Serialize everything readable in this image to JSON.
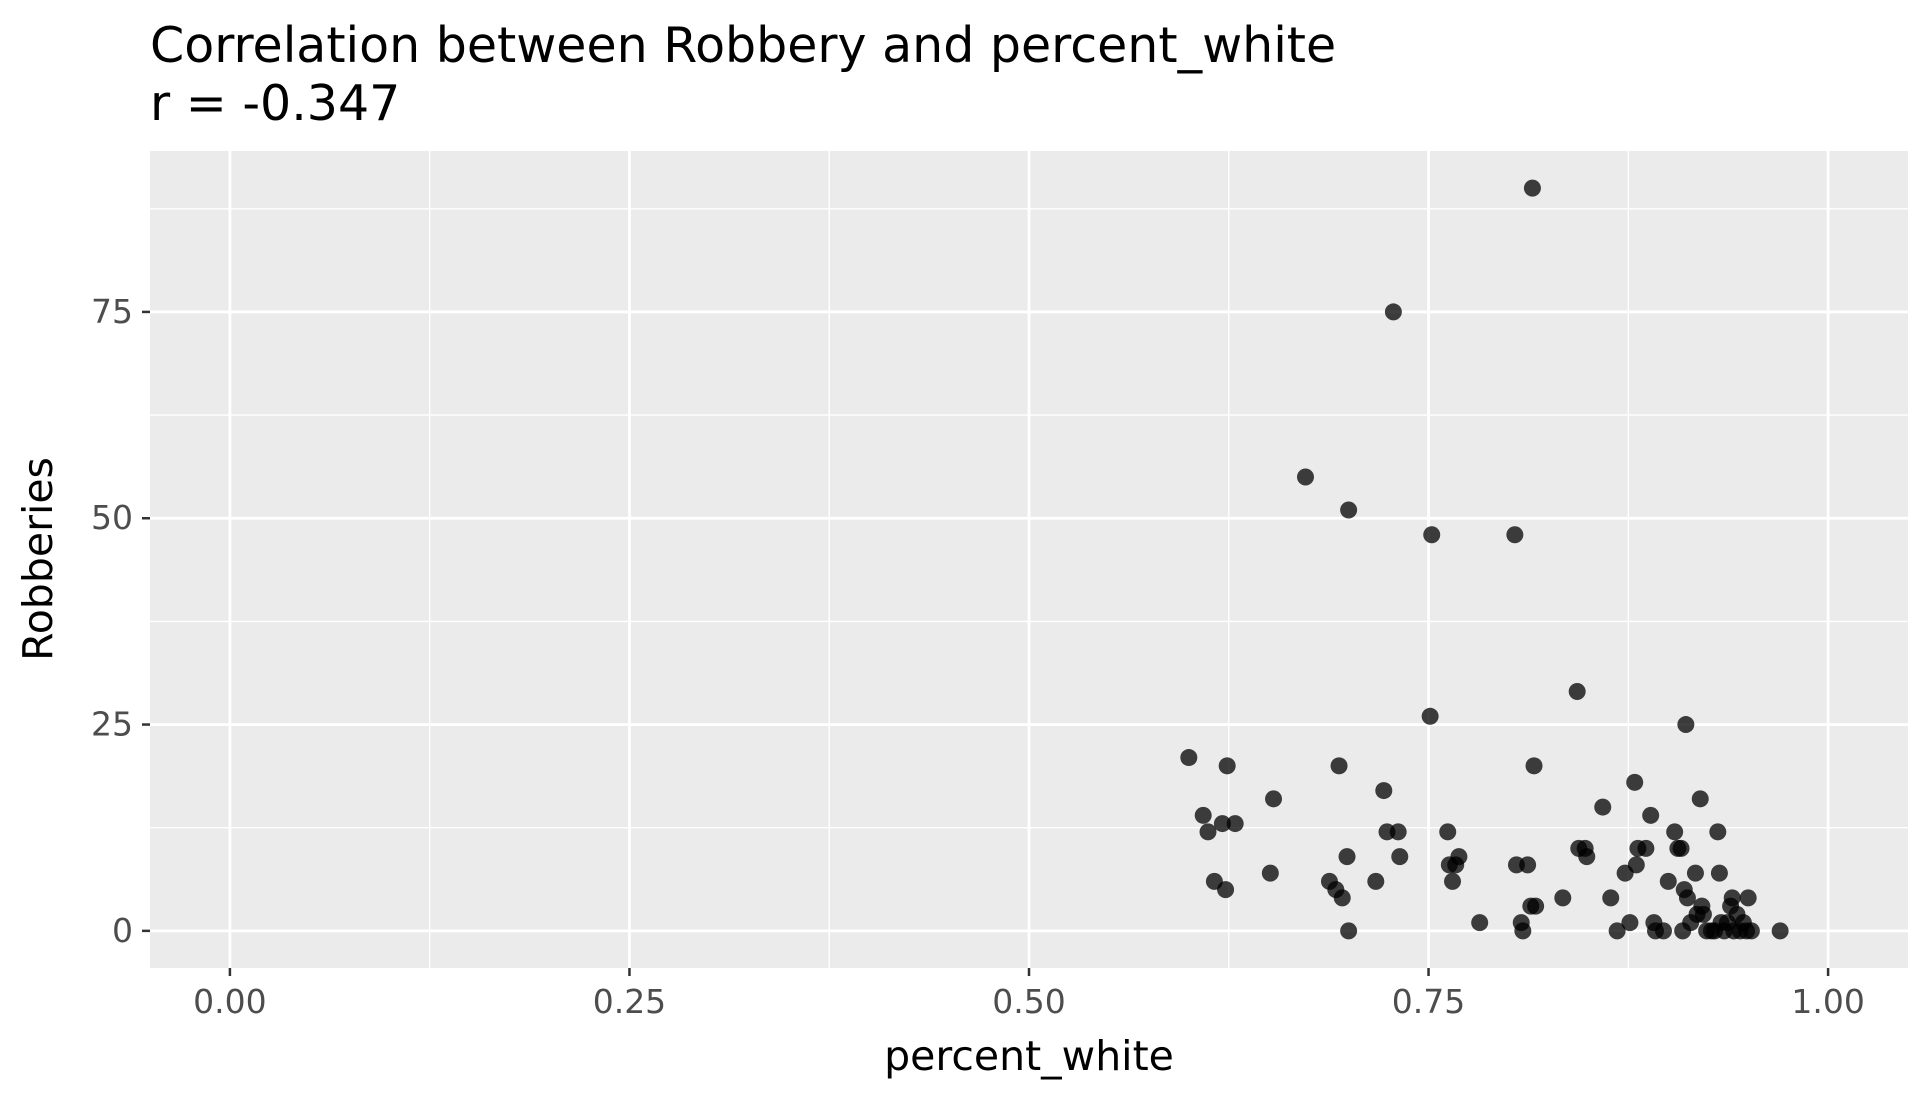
{
  "chart_data": {
    "type": "scatter",
    "title": "Correlation between Robbery and percent_white",
    "subtitle": "r = -0.347",
    "xlabel": "percent_white",
    "ylabel": "Robberies",
    "xlim": [
      -0.05,
      1.05
    ],
    "ylim": [
      -4.5,
      94.5
    ],
    "x_ticks": [
      0.0,
      0.25,
      0.5,
      0.75,
      1.0
    ],
    "x_tick_labels": [
      "0.00",
      "0.25",
      "0.50",
      "0.75",
      "1.00"
    ],
    "y_ticks": [
      0,
      25,
      50,
      75
    ],
    "y_tick_labels": [
      "0",
      "25",
      "50",
      "75"
    ],
    "grid": true,
    "legend": "none",
    "colors": {
      "panel": "#ebebeb",
      "grid": "#ffffff",
      "point": "#000000"
    },
    "points": [
      {
        "x": 0.6,
        "y": 21
      },
      {
        "x": 0.609,
        "y": 14
      },
      {
        "x": 0.612,
        "y": 12
      },
      {
        "x": 0.616,
        "y": 6
      },
      {
        "x": 0.621,
        "y": 13
      },
      {
        "x": 0.623,
        "y": 5
      },
      {
        "x": 0.624,
        "y": 20
      },
      {
        "x": 0.629,
        "y": 13
      },
      {
        "x": 0.651,
        "y": 7
      },
      {
        "x": 0.653,
        "y": 16
      },
      {
        "x": 0.673,
        "y": 55
      },
      {
        "x": 0.688,
        "y": 6
      },
      {
        "x": 0.692,
        "y": 5
      },
      {
        "x": 0.694,
        "y": 20
      },
      {
        "x": 0.696,
        "y": 4
      },
      {
        "x": 0.699,
        "y": 9
      },
      {
        "x": 0.7,
        "y": 0
      },
      {
        "x": 0.7,
        "y": 51
      },
      {
        "x": 0.717,
        "y": 6
      },
      {
        "x": 0.722,
        "y": 17
      },
      {
        "x": 0.724,
        "y": 12
      },
      {
        "x": 0.728,
        "y": 75
      },
      {
        "x": 0.731,
        "y": 12
      },
      {
        "x": 0.732,
        "y": 9
      },
      {
        "x": 0.751,
        "y": 26
      },
      {
        "x": 0.752,
        "y": 48
      },
      {
        "x": 0.762,
        "y": 12
      },
      {
        "x": 0.763,
        "y": 8
      },
      {
        "x": 0.765,
        "y": 6
      },
      {
        "x": 0.767,
        "y": 8
      },
      {
        "x": 0.769,
        "y": 9
      },
      {
        "x": 0.782,
        "y": 1
      },
      {
        "x": 0.804,
        "y": 48
      },
      {
        "x": 0.805,
        "y": 8
      },
      {
        "x": 0.808,
        "y": 1
      },
      {
        "x": 0.809,
        "y": 0
      },
      {
        "x": 0.812,
        "y": 8
      },
      {
        "x": 0.814,
        "y": 3
      },
      {
        "x": 0.815,
        "y": 90
      },
      {
        "x": 0.816,
        "y": 20
      },
      {
        "x": 0.817,
        "y": 3
      },
      {
        "x": 0.834,
        "y": 4
      },
      {
        "x": 0.843,
        "y": 29
      },
      {
        "x": 0.844,
        "y": 10
      },
      {
        "x": 0.848,
        "y": 10
      },
      {
        "x": 0.849,
        "y": 9
      },
      {
        "x": 0.859,
        "y": 15
      },
      {
        "x": 0.864,
        "y": 4
      },
      {
        "x": 0.868,
        "y": 0
      },
      {
        "x": 0.873,
        "y": 7
      },
      {
        "x": 0.876,
        "y": 1
      },
      {
        "x": 0.879,
        "y": 18
      },
      {
        "x": 0.88,
        "y": 8
      },
      {
        "x": 0.881,
        "y": 10
      },
      {
        "x": 0.886,
        "y": 10
      },
      {
        "x": 0.889,
        "y": 14
      },
      {
        "x": 0.891,
        "y": 1
      },
      {
        "x": 0.892,
        "y": 0
      },
      {
        "x": 0.897,
        "y": 0
      },
      {
        "x": 0.9,
        "y": 6
      },
      {
        "x": 0.904,
        "y": 12
      },
      {
        "x": 0.906,
        "y": 10
      },
      {
        "x": 0.908,
        "y": 10
      },
      {
        "x": 0.909,
        "y": 0
      },
      {
        "x": 0.91,
        "y": 5
      },
      {
        "x": 0.911,
        "y": 25
      },
      {
        "x": 0.912,
        "y": 4
      },
      {
        "x": 0.914,
        "y": 1
      },
      {
        "x": 0.917,
        "y": 7
      },
      {
        "x": 0.918,
        "y": 2
      },
      {
        "x": 0.92,
        "y": 16
      },
      {
        "x": 0.921,
        "y": 3
      },
      {
        "x": 0.922,
        "y": 2
      },
      {
        "x": 0.924,
        "y": 0
      },
      {
        "x": 0.927,
        "y": 0
      },
      {
        "x": 0.929,
        "y": 0
      },
      {
        "x": 0.931,
        "y": 12
      },
      {
        "x": 0.932,
        "y": 7
      },
      {
        "x": 0.933,
        "y": 1
      },
      {
        "x": 0.935,
        "y": 0
      },
      {
        "x": 0.937,
        "y": 1
      },
      {
        "x": 0.939,
        "y": 3
      },
      {
        "x": 0.94,
        "y": 4
      },
      {
        "x": 0.941,
        "y": 0
      },
      {
        "x": 0.943,
        "y": 2
      },
      {
        "x": 0.945,
        "y": 0
      },
      {
        "x": 0.947,
        "y": 1
      },
      {
        "x": 0.949,
        "y": 0
      },
      {
        "x": 0.95,
        "y": 4
      },
      {
        "x": 0.952,
        "y": 0
      },
      {
        "x": 0.97,
        "y": 0
      }
    ]
  }
}
